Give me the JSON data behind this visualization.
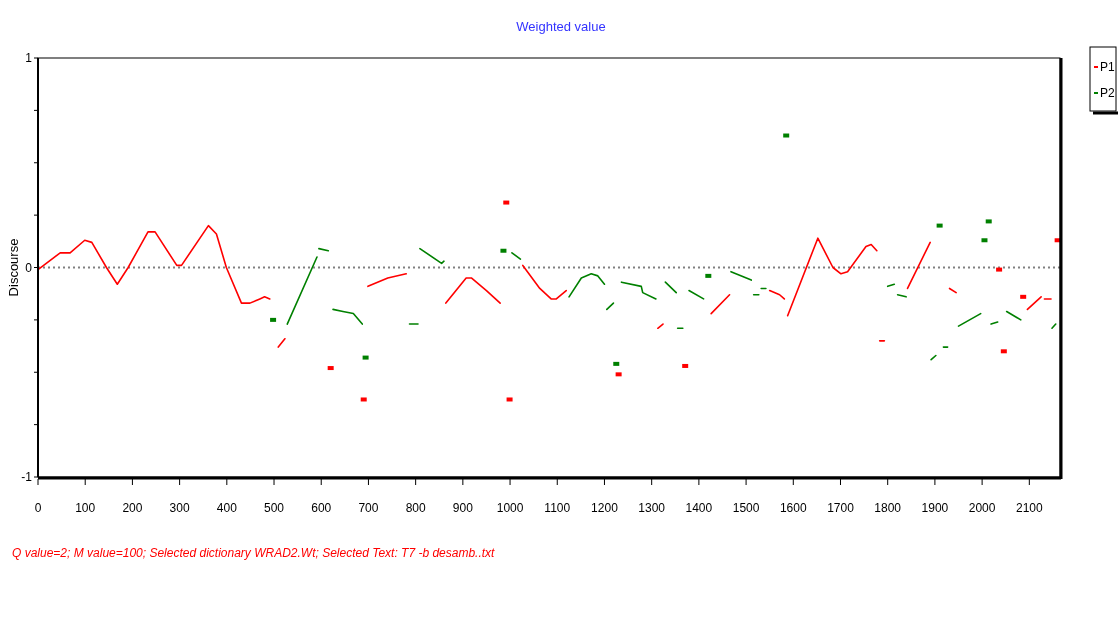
{
  "chart_data": {
    "type": "line",
    "title": "Weighted value",
    "ylabel": "Discourse",
    "xlim": [
      0,
      2165
    ],
    "ylim": [
      -1,
      1
    ],
    "xticks": [
      0,
      100,
      200,
      300,
      400,
      500,
      600,
      700,
      800,
      900,
      1000,
      1100,
      1200,
      1300,
      1400,
      1500,
      1600,
      1700,
      1800,
      1900,
      2000,
      2100
    ],
    "yticks": [
      -1,
      {
        "value": -0.75,
        "label": null
      },
      {
        "value": -0.5,
        "label": null
      },
      {
        "value": -0.25,
        "label": null
      },
      0,
      {
        "value": 0.25,
        "label": null
      },
      {
        "value": 0.5,
        "label": null
      },
      {
        "value": 0.75,
        "label": null
      },
      1
    ],
    "grid": false,
    "legend": "top right",
    "line_style": "solid",
    "ref_lines": [
      {
        "axis": "y",
        "value": 0,
        "color": "#808080",
        "line_style": "dotted"
      }
    ],
    "annotations": [
      "Q value=2; M value=100; Selected dictionary WRAD2.Wt; Selected Text: T7 -b desamb..txt"
    ],
    "series": [
      {
        "name": "P1",
        "color": "#ff0000",
        "x": [
          0,
          47,
          68,
          99,
          114,
          145,
          168,
          191,
          233,
          248,
          294,
          304,
          361,
          378,
          399,
          431,
          449,
          470,
          480,
          491,
          492,
          509,
          523,
          524,
          699,
          741,
          780,
          781,
          864,
          907,
          918,
          950,
          979,
          980,
          1027,
          1063,
          1087,
          1098,
          1119,
          1120,
          1313,
          1324,
          1325,
          1426,
          1465,
          1466,
          1550,
          1571,
          1581,
          1582,
          1588,
          1652,
          1684,
          1701,
          1715,
          1754,
          1765,
          1777,
          1778,
          1783,
          1793,
          1794,
          1842,
          1890,
          1891,
          1931,
          1945,
          1946,
          2096,
          2125,
          2126,
          2132,
          2146
        ],
        "values": [
          -0.01,
          0.07,
          0.07,
          0.13,
          0.12,
          0,
          -0.08,
          0,
          0.17,
          0.17,
          0.01,
          0.01,
          0.2,
          0.16,
          0,
          -0.17,
          -0.17,
          -0.15,
          -0.14,
          -0.15,
          null,
          -0.38,
          -0.34,
          null,
          -0.09,
          -0.05,
          -0.03,
          null,
          -0.17,
          -0.05,
          -0.05,
          -0.11,
          -0.17,
          null,
          0.01,
          -0.1,
          -0.15,
          -0.15,
          -0.11,
          null,
          -0.29,
          -0.27,
          null,
          -0.22,
          -0.13,
          null,
          -0.11,
          -0.13,
          -0.15,
          null,
          -0.23,
          0.14,
          0,
          -0.03,
          -0.02,
          0.1,
          0.11,
          0.08,
          null,
          -0.35,
          -0.35,
          null,
          -0.1,
          0.12,
          null,
          -0.1,
          -0.12,
          null,
          -0.2,
          -0.14,
          null,
          -0.15,
          -0.15
        ]
      },
      {
        "type": "scatter",
        "marker": "square",
        "color": "#ff0000",
        "x": [
          620,
          690,
          992,
          999,
          1230,
          1371,
          2036,
          2046,
          2087,
          2160
        ],
        "values": [
          -0.48,
          -0.63,
          0.31,
          -0.63,
          -0.51,
          -0.47,
          -0.01,
          -0.4,
          -0.14,
          0.13
        ]
      },
      {
        "name": "P2",
        "color": "#008000",
        "x": [
          528,
          591,
          592,
          595,
          615,
          616,
          625,
          646,
          668,
          687,
          688,
          787,
          805,
          806,
          809,
          855,
          860,
          861,
          1004,
          1022,
          1023,
          1125,
          1151,
          1172,
          1186,
          1200,
          1201,
          1205,
          1219,
          1220,
          1236,
          1278,
          1281,
          1309,
          1310,
          1329,
          1352,
          1353,
          1355,
          1366,
          1367,
          1379,
          1410,
          1411,
          1468,
          1511,
          1512,
          1516,
          1527,
          1528,
          1532,
          1542,
          1543,
          1800,
          1814,
          1815,
          1821,
          1839,
          1840,
          1892,
          1902,
          1903,
          1918,
          1927,
          1928,
          1950,
          1997,
          1998,
          2019,
          2033,
          2034,
          2052,
          2082,
          2083,
          2148,
          2156
        ],
        "values": [
          -0.27,
          0.05,
          null,
          0.09,
          0.08,
          null,
          -0.2,
          -0.21,
          -0.22,
          -0.27,
          null,
          -0.27,
          -0.27,
          null,
          0.09,
          0.02,
          0.03,
          null,
          0.07,
          0.04,
          null,
          -0.14,
          -0.05,
          -0.03,
          -0.04,
          -0.08,
          null,
          -0.2,
          -0.17,
          null,
          -0.07,
          -0.09,
          -0.12,
          -0.15,
          null,
          -0.07,
          -0.12,
          null,
          -0.29,
          -0.29,
          null,
          -0.11,
          -0.15,
          null,
          -0.02,
          -0.06,
          null,
          -0.13,
          -0.13,
          null,
          -0.1,
          -0.1,
          null,
          -0.09,
          -0.08,
          null,
          -0.13,
          -0.14,
          null,
          -0.44,
          -0.42,
          null,
          -0.38,
          -0.38,
          null,
          -0.28,
          -0.22,
          null,
          -0.27,
          -0.26,
          null,
          -0.21,
          -0.25,
          null,
          -0.29,
          -0.27
        ]
      },
      {
        "type": "scatter",
        "marker": "square",
        "color": "#008000",
        "x": [
          498,
          694,
          986,
          1225,
          1420,
          1585,
          1910,
          2005,
          2014
        ],
        "values": [
          -0.25,
          -0.43,
          0.08,
          -0.46,
          -0.04,
          0.63,
          0.2,
          0.13,
          0.22
        ]
      }
    ]
  }
}
